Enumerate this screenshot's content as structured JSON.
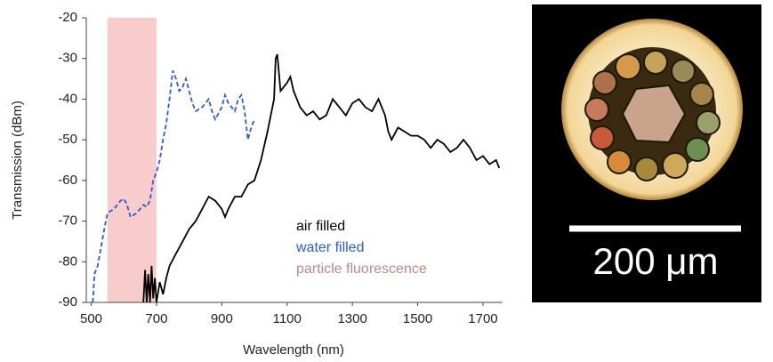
{
  "chart_data": {
    "type": "line",
    "x_label": "Wavelength (nm)",
    "y_label": "Transmission (dBm)",
    "xlim": [
      485,
      1760
    ],
    "ylim": [
      -90,
      -20
    ],
    "xticks": [
      500,
      700,
      900,
      1100,
      1300,
      1500,
      1700
    ],
    "yticks": [
      -20,
      -30,
      -40,
      -50,
      -60,
      -70,
      -80,
      -90
    ],
    "grid": false,
    "shaded_region": {
      "label": "particle fluorescence",
      "range": [
        550,
        700
      ],
      "color": "#f9cccc",
      "label_color": "#b88a8a"
    },
    "series": [
      {
        "name": "air filled",
        "color": "#000000",
        "dash": false,
        "x": [
          660,
          665,
          670,
          675,
          680,
          685,
          690,
          695,
          700,
          710,
          720,
          730,
          740,
          760,
          780,
          800,
          820,
          840,
          860,
          880,
          900,
          910,
          920,
          940,
          960,
          980,
          1000,
          1020,
          1040,
          1050,
          1060,
          1065,
          1070,
          1080,
          1100,
          1110,
          1120,
          1140,
          1160,
          1180,
          1200,
          1220,
          1240,
          1260,
          1280,
          1300,
          1320,
          1340,
          1360,
          1380,
          1400,
          1410,
          1420,
          1440,
          1460,
          1480,
          1500,
          1520,
          1540,
          1560,
          1580,
          1600,
          1620,
          1640,
          1660,
          1680,
          1700,
          1720,
          1740,
          1750
        ],
        "values": [
          -90,
          -82,
          -90,
          -83,
          -90,
          -81,
          -89,
          -84,
          -90,
          -85,
          -88,
          -84,
          -81,
          -78,
          -75,
          -72,
          -70,
          -67,
          -64,
          -65,
          -67,
          -69,
          -67,
          -64,
          -64,
          -61,
          -60,
          -55,
          -48,
          -44,
          -40,
          -30,
          -29,
          -38,
          -36,
          -34.5,
          -38,
          -42,
          -44,
          -43,
          -45,
          -44,
          -40,
          -42,
          -44,
          -41,
          -40,
          -42,
          -43,
          -40,
          -44,
          -48,
          -50,
          -47,
          -48,
          -49,
          -49,
          -50,
          -52,
          -50,
          -51,
          -53,
          -52,
          -50,
          -52,
          -55,
          -54,
          -56,
          -55,
          -57
        ]
      },
      {
        "name": "water filled",
        "color": "#2a5bd7",
        "dash": true,
        "x": [
          505,
          510,
          520,
          540,
          550,
          570,
          590,
          600,
          610,
          620,
          640,
          660,
          670,
          680,
          690,
          700,
          710,
          720,
          730,
          740,
          750,
          760,
          770,
          780,
          790,
          800,
          810,
          820,
          840,
          860,
          870,
          880,
          900,
          910,
          920,
          940,
          950,
          960,
          970,
          980,
          990,
          1000
        ],
        "values": [
          -90,
          -83,
          -81,
          -72,
          -68,
          -67,
          -65,
          -64.5,
          -66,
          -69,
          -68,
          -66,
          -66.5,
          -65,
          -60,
          -58,
          -55,
          -50,
          -46,
          -40,
          -33,
          -35,
          -38,
          -37,
          -35,
          -38,
          -41,
          -43,
          -42,
          -40,
          -43,
          -45,
          -42,
          -39,
          -41,
          -43,
          -40,
          -39,
          -43,
          -50,
          -47,
          -45
        ]
      }
    ]
  },
  "image": {
    "scale_label": "200 μm"
  }
}
